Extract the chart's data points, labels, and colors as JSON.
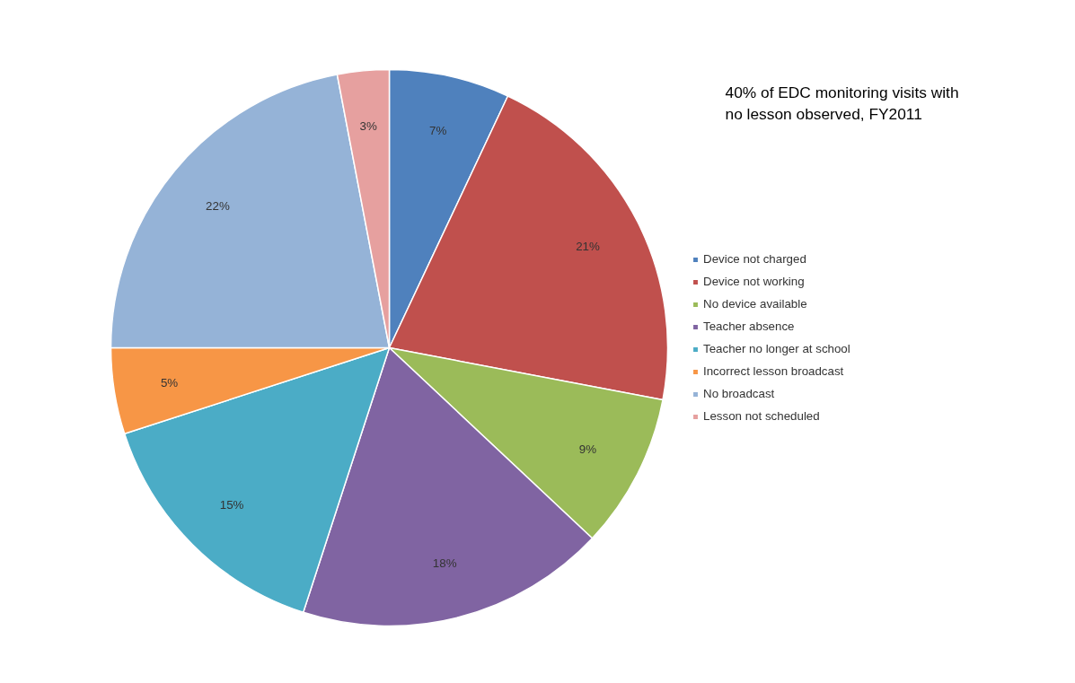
{
  "chart_data": {
    "type": "pie",
    "categories": [
      "Device not charged",
      "Device not working",
      "No device available",
      "Teacher absence",
      "Teacher no longer at school",
      "Incorrect lesson broadcast",
      "No broadcast",
      "Lesson not scheduled"
    ],
    "values": [
      7,
      21,
      9,
      18,
      15,
      5,
      22,
      3
    ],
    "colors": [
      "#4f81bd",
      "#c0504d",
      "#9bbb59",
      "#8064a2",
      "#4bacc6",
      "#f79646",
      "#95b3d7",
      "#e6a09f"
    ],
    "value_labels": [
      "7%",
      "21%",
      "9%",
      "18%",
      "15%",
      "5%",
      "22%",
      "3%"
    ],
    "annotations": [
      "40% of EDC monitoring visits with no lesson observed, FY2011"
    ],
    "legend": "right"
  }
}
